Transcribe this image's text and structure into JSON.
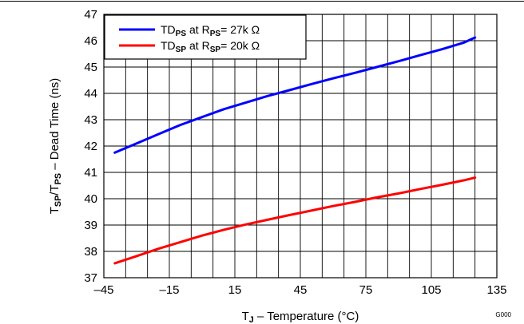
{
  "chart_data": {
    "type": "line",
    "x": [
      -40,
      -30,
      -20,
      -10,
      0,
      10,
      20,
      30,
      40,
      50,
      60,
      70,
      80,
      90,
      100,
      110,
      120,
      125
    ],
    "series": [
      {
        "name_parts": [
          "TD",
          "PS",
          " at R",
          "PS",
          "= 27k Ω"
        ],
        "color": "#0000ff",
        "values": [
          41.75,
          42.1,
          42.45,
          42.8,
          43.1,
          43.4,
          43.65,
          43.9,
          44.12,
          44.35,
          44.57,
          44.78,
          45.0,
          45.22,
          45.45,
          45.68,
          45.93,
          46.12
        ]
      },
      {
        "name_parts": [
          "TD",
          "SP",
          " at R",
          "SP",
          "= 20k Ω"
        ],
        "color": "#ff0000",
        "values": [
          37.55,
          37.82,
          38.1,
          38.35,
          38.6,
          38.82,
          39.02,
          39.2,
          39.38,
          39.55,
          39.72,
          39.88,
          40.05,
          40.2,
          40.37,
          40.53,
          40.7,
          40.8
        ]
      }
    ],
    "xlim": [
      -45,
      135
    ],
    "ylim": [
      37,
      47
    ],
    "xticks": [
      -45,
      -15,
      15,
      45,
      75,
      105,
      135
    ],
    "xtick_labels": [
      "–45",
      "–15",
      "15",
      "45",
      "75",
      "105",
      "135"
    ],
    "yticks": [
      37,
      38,
      39,
      40,
      41,
      42,
      43,
      44,
      45,
      46,
      47
    ],
    "ylabel_parts": [
      "T",
      "SP",
      "/T",
      "PS",
      " – Dead Time (ns)"
    ],
    "xlabel_parts": [
      "T",
      "J",
      " – Temperature (°C)"
    ],
    "grid": true,
    "legend_position": "top-left",
    "figure_id": "G000"
  }
}
